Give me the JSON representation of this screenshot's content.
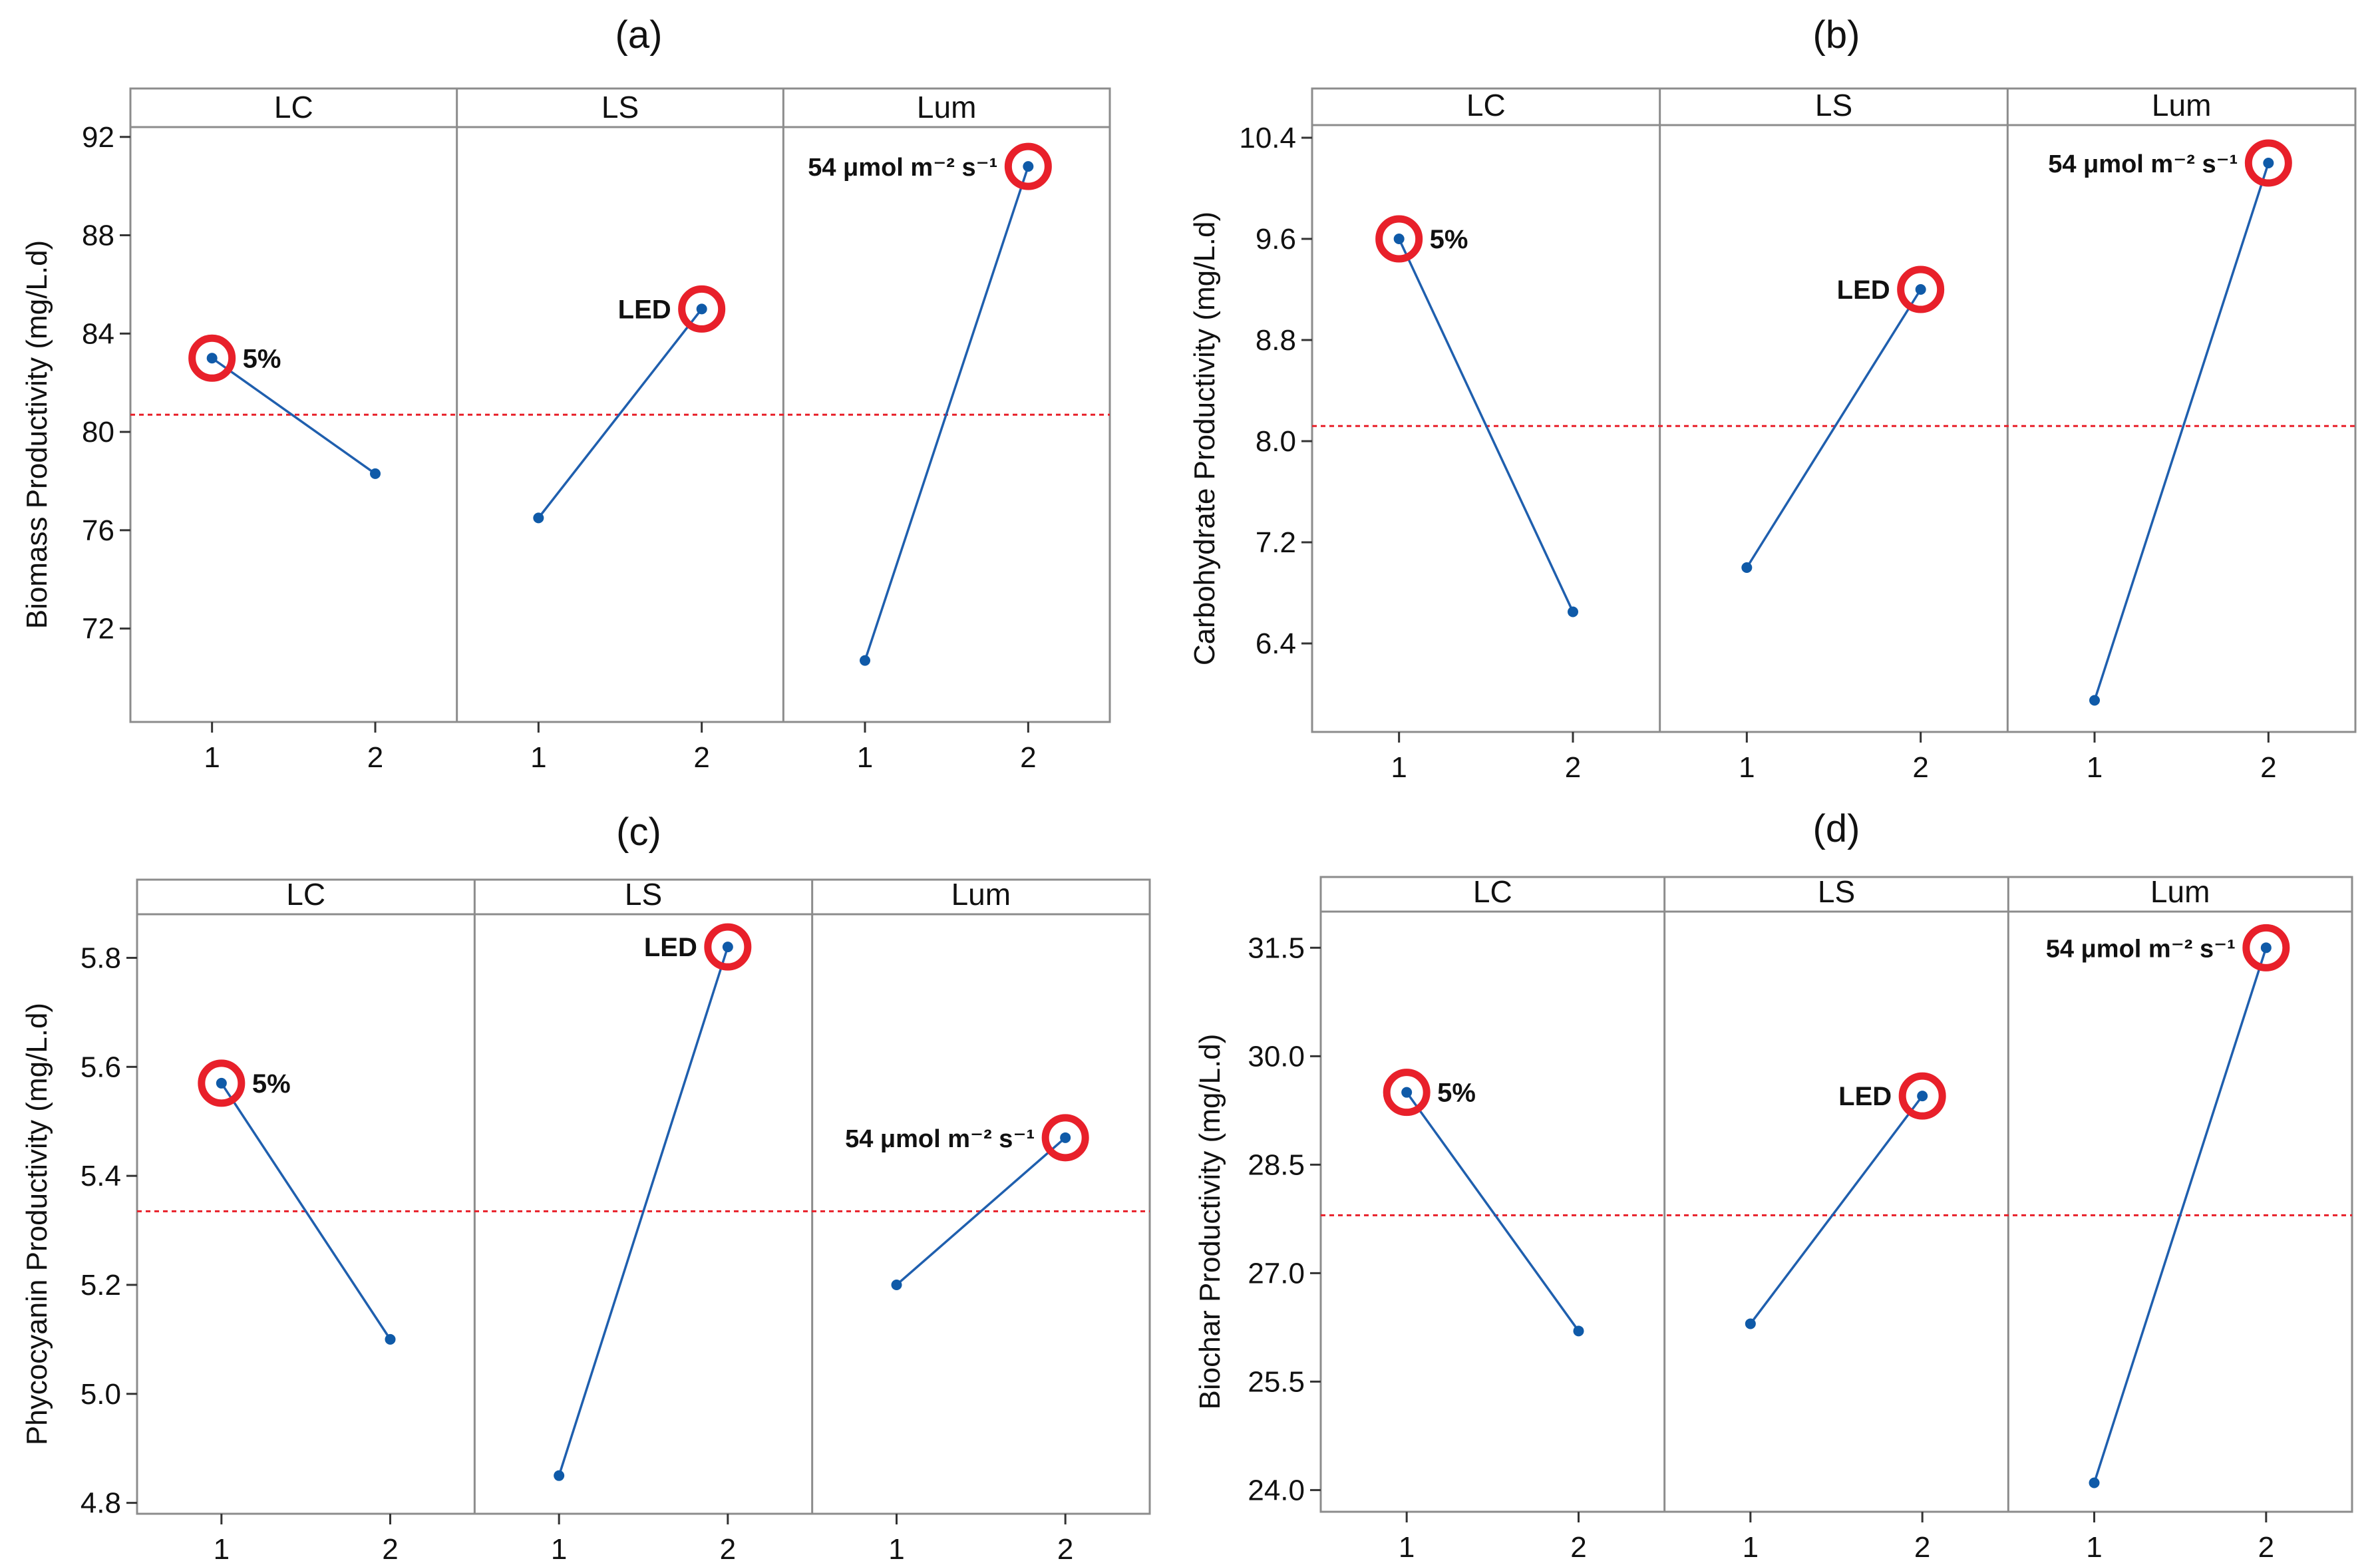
{
  "figure_type": "main effects plots",
  "colors": {
    "line": "#1f5fae",
    "point": "#0f5aa8",
    "reference": "#e8202a",
    "highlight": "#e8202a",
    "frame": "#8c8c8c"
  },
  "chart_data": [
    {
      "type": "line",
      "panel": "(a)",
      "ylabel": "Biomass Productivity (mg/L.d)",
      "facets": [
        "LC",
        "LS",
        "Lum"
      ],
      "x_levels": [
        "1",
        "2"
      ],
      "ylim": [
        68.2,
        92.4
      ],
      "y_ticks": [
        "72",
        "76",
        "80",
        "84",
        "88",
        "92"
      ],
      "y_tick_values": [
        72,
        76,
        80,
        84,
        88,
        92
      ],
      "reference_mean": 80.7,
      "series": [
        {
          "name": "LC",
          "values": [
            83.0,
            78.3
          ],
          "highlight_level": 1,
          "annotation": "5%"
        },
        {
          "name": "LS",
          "values": [
            76.5,
            85.0
          ],
          "highlight_level": 2,
          "annotation": "LED"
        },
        {
          "name": "Lum",
          "values": [
            70.7,
            90.8
          ],
          "highlight_level": 2,
          "annotation": "54 μmol m⁻² s⁻¹"
        }
      ]
    },
    {
      "type": "line",
      "panel": "(b)",
      "ylabel": "Carbohydrate Productivity (mg/L.d)",
      "facets": [
        "LC",
        "LS",
        "Lum"
      ],
      "x_levels": [
        "1",
        "2"
      ],
      "ylim": [
        5.7,
        10.5
      ],
      "y_ticks": [
        "6.4",
        "7.2",
        "8.0",
        "8.8",
        "9.6",
        "10.4"
      ],
      "y_tick_values": [
        6.4,
        7.2,
        8.0,
        8.8,
        9.6,
        10.4
      ],
      "reference_mean": 8.12,
      "series": [
        {
          "name": "LC",
          "values": [
            9.6,
            6.65
          ],
          "highlight_level": 1,
          "annotation": "5%"
        },
        {
          "name": "LS",
          "values": [
            7.0,
            9.2
          ],
          "highlight_level": 2,
          "annotation": "LED"
        },
        {
          "name": "Lum",
          "values": [
            5.95,
            10.2
          ],
          "highlight_level": 2,
          "annotation": "54 μmol m⁻² s⁻¹"
        }
      ]
    },
    {
      "type": "line",
      "panel": "(c)",
      "ylabel": "Phycocyanin Productivity (mg/L.d)",
      "facets": [
        "LC",
        "LS",
        "Lum"
      ],
      "x_levels": [
        "1",
        "2"
      ],
      "ylim": [
        4.78,
        5.88
      ],
      "y_ticks": [
        "4.8",
        "5.0",
        "5.2",
        "5.4",
        "5.6",
        "5.8"
      ],
      "y_tick_values": [
        4.8,
        5.0,
        5.2,
        5.4,
        5.6,
        5.8
      ],
      "reference_mean": 5.335,
      "series": [
        {
          "name": "LC",
          "values": [
            5.57,
            5.1
          ],
          "highlight_level": 1,
          "annotation": "5%"
        },
        {
          "name": "LS",
          "values": [
            4.85,
            5.82
          ],
          "highlight_level": 2,
          "annotation": "LED"
        },
        {
          "name": "Lum",
          "values": [
            5.2,
            5.47
          ],
          "highlight_level": 2,
          "annotation": "54 μmol m⁻² s⁻¹"
        }
      ]
    },
    {
      "type": "line",
      "panel": "(d)",
      "ylabel": "Biochar Productivity (mg/L.d)",
      "facets": [
        "LC",
        "LS",
        "Lum"
      ],
      "x_levels": [
        "1",
        "2"
      ],
      "ylim": [
        23.7,
        32.0
      ],
      "y_ticks": [
        "24.0",
        "25.5",
        "27.0",
        "28.5",
        "30.0",
        "31.5"
      ],
      "y_tick_values": [
        24.0,
        25.5,
        27.0,
        28.5,
        30.0,
        31.5
      ],
      "reference_mean": 27.8,
      "series": [
        {
          "name": "LC",
          "values": [
            29.5,
            26.2
          ],
          "highlight_level": 1,
          "annotation": "5%"
        },
        {
          "name": "LS",
          "values": [
            26.3,
            29.45
          ],
          "highlight_level": 2,
          "annotation": "LED"
        },
        {
          "name": "Lum",
          "values": [
            24.1,
            31.5
          ],
          "highlight_level": 2,
          "annotation": "54 μmol m⁻² s⁻¹"
        }
      ]
    }
  ]
}
